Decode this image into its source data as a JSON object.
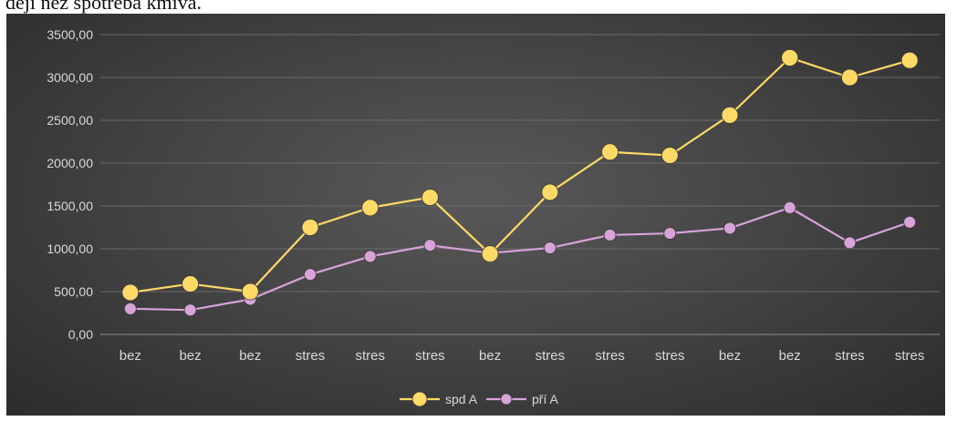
{
  "header_text": "dejí něz spotřeba kmiva.",
  "chart_data": {
    "type": "line",
    "title": "",
    "xlabel": "",
    "ylabel": "",
    "categories": [
      "bez",
      "bez",
      "bez",
      "stres",
      "stres",
      "stres",
      "bez",
      "stres",
      "stres",
      "stres",
      "bez",
      "bez",
      "stres",
      "stres"
    ],
    "yticks": [
      "0,00",
      "500,00",
      "1000,00",
      "1500,00",
      "2000,00",
      "2500,00",
      "3000,00",
      "3500,00"
    ],
    "ylim": [
      0,
      3500
    ],
    "grid": true,
    "legend_position": "bottom",
    "series": [
      {
        "name": "spd A",
        "color": "#ffd966",
        "values": [
          490,
          590,
          500,
          1250,
          1480,
          1600,
          940,
          1660,
          2130,
          2090,
          2560,
          3230,
          3000,
          3200
        ]
      },
      {
        "name": "pří A",
        "color": "#d9a3d9",
        "values": [
          300,
          285,
          410,
          700,
          910,
          1040,
          950,
          1010,
          1160,
          1180,
          1240,
          1480,
          1070,
          1310
        ]
      }
    ]
  }
}
